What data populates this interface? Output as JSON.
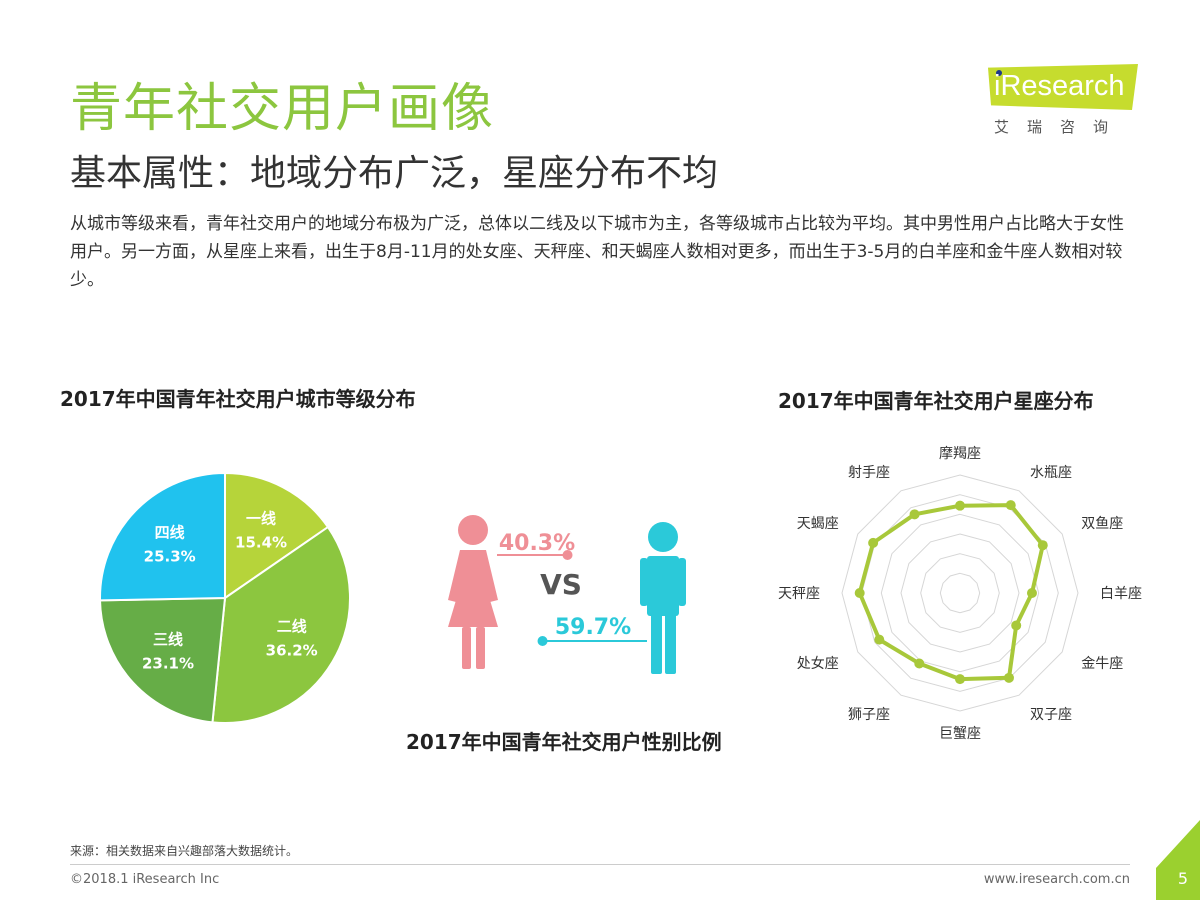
{
  "header": {
    "title": "青年社交用户画像",
    "subtitle": "基本属性：地域分布广泛，星座分布不均",
    "description": "从城市等级来看，青年社交用户的地域分布极为广泛，总体以二线及以下城市为主，各等级城市占比较为平均。其中男性用户占比略大于女性用户。另一方面，从星座上来看，出生于8月-11月的处女座、天秤座、和天蝎座人数相对更多，而出生于3-5月的白羊座和金牛座人数相对较少。"
  },
  "logo": {
    "brand": "iResearch",
    "cn": "艾瑞咨询",
    "color": "#c6dc2e"
  },
  "colors": {
    "accent": "#8cc63f",
    "female": "#ef8f96",
    "male": "#2bc9d9",
    "radar": "#a8c83a"
  },
  "chart_data": [
    {
      "type": "pie",
      "title": "2017年中国青年社交用户城市等级分布",
      "categories": [
        "一线",
        "二线",
        "三线",
        "四线"
      ],
      "values": [
        15.4,
        36.2,
        23.1,
        25.3
      ],
      "value_labels": [
        "15.4%",
        "36.2%",
        "23.1%",
        "25.3%"
      ],
      "colors": [
        "#b6d43a",
        "#8cc63f",
        "#66ad47",
        "#20c2ee"
      ]
    },
    {
      "type": "bar",
      "title": "2017年中国青年社交用户性别比例",
      "categories": [
        "女",
        "男"
      ],
      "values": [
        40.3,
        59.7
      ],
      "value_labels": [
        "40.3%",
        "59.7%"
      ],
      "vs_label": "VS"
    },
    {
      "type": "radar",
      "title": "2017年中国青年社交用户星座分布",
      "categories": [
        "摩羯座",
        "水瓶座",
        "双鱼座",
        "白羊座",
        "金牛座",
        "双子座",
        "巨蟹座",
        "狮子座",
        "处女座",
        "天秤座",
        "天蝎座",
        "射手座"
      ],
      "values": [
        0.74,
        0.86,
        0.81,
        0.61,
        0.55,
        0.83,
        0.73,
        0.69,
        0.79,
        0.85,
        0.85,
        0.77
      ],
      "rlim": [
        0,
        1
      ],
      "rings": 6
    }
  ],
  "footer": {
    "source": "来源：相关数据来自兴趣部落大数据统计。",
    "copyright": "©2018.1 iResearch Inc",
    "site": "www.iresearch.com.cn",
    "page": "5"
  }
}
